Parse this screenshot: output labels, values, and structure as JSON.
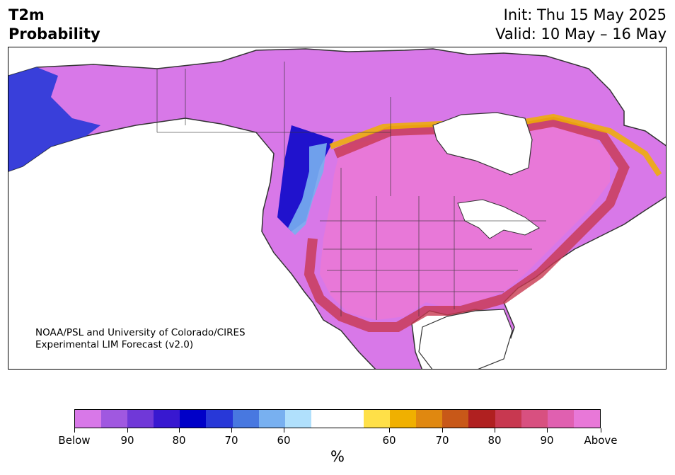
{
  "header": {
    "title_line1": "T2m",
    "title_line2": "Probability",
    "init": "Init: Thu 15 May 2025",
    "valid": "Valid: 10 May – 16 May"
  },
  "map": {
    "credit_line1": "NOAA/PSL and University of Colorado/CIRES",
    "credit_line2": "Experimental LIM Forecast (v2.0)"
  },
  "colorbar": {
    "unit": "%",
    "colors": [
      "#d878e8",
      "#a058e0",
      "#7038d8",
      "#3818d0",
      "#0000c8",
      "#2838d8",
      "#4878e0",
      "#78b0f0",
      "#b0e0fc",
      "#ffffff",
      "#ffffff",
      "#ffe048",
      "#f0b000",
      "#e08810",
      "#c85818",
      "#b02020",
      "#c83850",
      "#d85080",
      "#e060b0",
      "#e878d8"
    ],
    "tick_labels": [
      "Below",
      "90",
      "80",
      "70",
      "60",
      "60",
      "70",
      "80",
      "90",
      "Above"
    ]
  }
}
